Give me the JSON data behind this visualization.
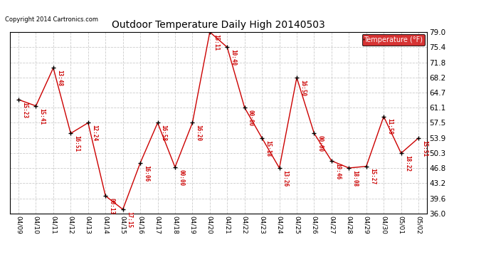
{
  "title": "Outdoor Temperature Daily High 20140503",
  "copyright": "Copyright 2014 Cartronics.com",
  "legend_label": "Temperature (°F)",
  "dates": [
    "04/09",
    "04/10",
    "04/11",
    "04/12",
    "04/13",
    "04/14",
    "04/15",
    "04/16",
    "04/17",
    "04/18",
    "04/19",
    "04/20",
    "04/21",
    "04/22",
    "04/23",
    "04/24",
    "04/25",
    "04/26",
    "04/27",
    "04/28",
    "04/29",
    "04/30",
    "05/01",
    "05/02"
  ],
  "temps": [
    63.0,
    61.5,
    70.5,
    55.0,
    57.5,
    40.2,
    37.0,
    48.0,
    57.5,
    47.0,
    57.5,
    79.0,
    75.4,
    61.1,
    53.9,
    46.8,
    68.2,
    55.0,
    48.5,
    46.8,
    47.2,
    59.0,
    50.3,
    53.9
  ],
  "times": [
    "15:23",
    "15:41",
    "13:48",
    "16:51",
    "12:24",
    "00:13",
    "17:15",
    "16:06",
    "16:58",
    "00:00",
    "16:20",
    "15:11",
    "10:40",
    "00:00",
    "15:18",
    "13:26",
    "16:50",
    "00:00",
    "19:46",
    "18:08",
    "15:27",
    "11:59",
    "18:22",
    "15:51"
  ],
  "ylim": [
    36.0,
    79.0
  ],
  "yticks": [
    36.0,
    39.6,
    43.2,
    46.8,
    50.3,
    53.9,
    57.5,
    61.1,
    64.7,
    68.2,
    71.8,
    75.4,
    79.0
  ],
  "line_color": "#cc0000",
  "marker_color": "#000000",
  "bg_color": "#ffffff",
  "grid_color": "#cccccc",
  "legend_bg": "#cc0000",
  "legend_text_color": "#ffffff",
  "title_color": "#000000",
  "annotation_color": "#cc0000",
  "copyright_color": "#000000",
  "figsize": [
    6.9,
    3.75
  ],
  "dpi": 100
}
